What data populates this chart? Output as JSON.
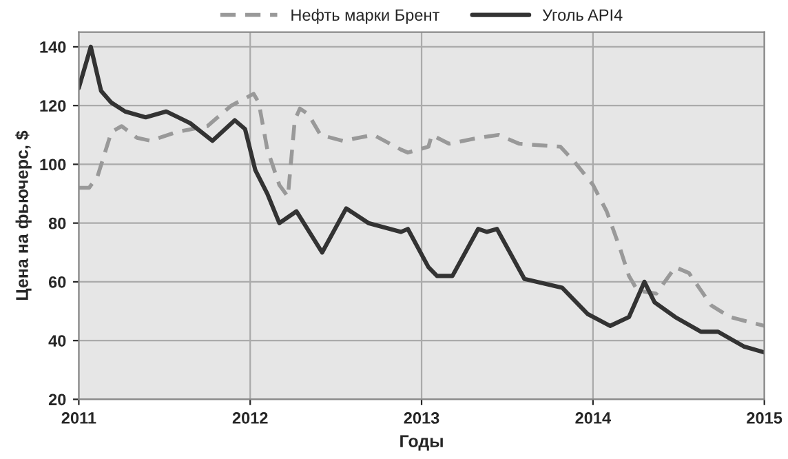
{
  "chart_data": {
    "type": "line",
    "xlabel": "Годы",
    "ylabel": "Цена на фьючерс, $",
    "xlim": [
      2011,
      2015
    ],
    "xticks": [
      2011,
      2012,
      2013,
      2014,
      2015
    ],
    "ylim": [
      20,
      145
    ],
    "yticks": [
      20,
      40,
      60,
      80,
      100,
      120,
      140
    ],
    "grid": true,
    "legend": "top",
    "marker": "none",
    "series": [
      {
        "name": "Нефть марки Брент",
        "color": "#999999",
        "line_style": "dashed",
        "x": [
          2011.0,
          2011.06,
          2011.11,
          2011.19,
          2011.25,
          2011.34,
          2011.42,
          2011.57,
          2011.75,
          2011.89,
          2012.02,
          2012.05,
          2012.1,
          2012.17,
          2012.22,
          2012.26,
          2012.29,
          2012.34,
          2012.41,
          2012.54,
          2012.72,
          2012.88,
          2012.92,
          2013.04,
          2013.06,
          2013.16,
          2013.33,
          2013.45,
          2013.57,
          2013.81,
          2013.89,
          2014.0,
          2014.08,
          2014.16,
          2014.21,
          2014.26,
          2014.37,
          2014.48,
          2014.56,
          2014.69,
          2014.8,
          2015.0
        ],
        "values": [
          92,
          92,
          96,
          111,
          113,
          109,
          108,
          111,
          113,
          120,
          124,
          121,
          105,
          93,
          89,
          115,
          119,
          117,
          110,
          108,
          110,
          105,
          104,
          106,
          110,
          107,
          109,
          110,
          107,
          106,
          101,
          93,
          84,
          71,
          62,
          57,
          56,
          65,
          63,
          52,
          48,
          45
        ]
      },
      {
        "name": "Уголь API4",
        "color": "#333333",
        "line_style": "solid",
        "x": [
          2011.0,
          2011.07,
          2011.13,
          2011.19,
          2011.27,
          2011.39,
          2011.51,
          2011.65,
          2011.78,
          2011.91,
          2011.97,
          2012.03,
          2012.1,
          2012.17,
          2012.27,
          2012.42,
          2012.56,
          2012.69,
          2012.88,
          2012.92,
          2013.04,
          2013.09,
          2013.18,
          2013.33,
          2013.38,
          2013.44,
          2013.6,
          2013.82,
          2013.97,
          2014.1,
          2014.21,
          2014.3,
          2014.36,
          2014.48,
          2014.63,
          2014.73,
          2014.88,
          2015.0
        ],
        "values": [
          126,
          140,
          125,
          121,
          118,
          116,
          118,
          114,
          108,
          115,
          112,
          98,
          90,
          80,
          84,
          70,
          85,
          80,
          77,
          78,
          65,
          62,
          62,
          78,
          77,
          78,
          61,
          58,
          49,
          45,
          48,
          60,
          53,
          48,
          43,
          43,
          38,
          36
        ]
      }
    ]
  }
}
